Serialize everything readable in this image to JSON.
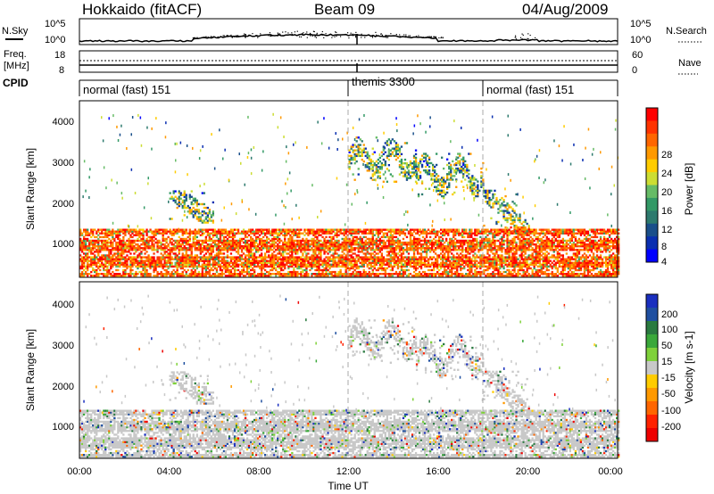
{
  "header": {
    "radar": "Hokkaido (fitACF)",
    "beam": "Beam 09",
    "date": "04/Aug/2009"
  },
  "noise_panel": {
    "left_label": "N.Sky",
    "right_label": "N.Search",
    "ticks": [
      "10^5",
      "10^0"
    ]
  },
  "freq_panel": {
    "left_label_1": "Freq.",
    "left_label_2": "[MHz]",
    "left_ticks": [
      "18",
      "8"
    ],
    "right_label": "Nave",
    "right_ticks": [
      "60",
      "0"
    ]
  },
  "cpid_panel": {
    "label": "CPID",
    "segments": [
      {
        "name": "normal (fast) 151",
        "start_hour": 0,
        "end_hour": 12
      },
      {
        "name": "themis 3300",
        "start_hour": 12,
        "end_hour": 18
      },
      {
        "name": "normal (fast) 151",
        "start_hour": 18,
        "end_hour": 24
      }
    ]
  },
  "power_panel": {
    "ylabel": "Slant Range [km]",
    "yticks": [
      "4000",
      "3000",
      "2000",
      "1000"
    ],
    "colorbar_label": "Power [dB]",
    "colorbar_ticks": [
      "28",
      "24",
      "20",
      "16",
      "12",
      "8",
      "4"
    ],
    "colors": [
      "#ff0000",
      "#ff3300",
      "#ff6600",
      "#ff9900",
      "#ffcc00",
      "#ccdd33",
      "#66bb66",
      "#339966",
      "#2d7a6e",
      "#1a4f8a",
      "#0a2fb0",
      "#0000ff"
    ]
  },
  "velocity_panel": {
    "ylabel": "Slant Range [km]",
    "yticks": [
      "4000",
      "3000",
      "2000",
      "1000"
    ],
    "colorbar_label": "Velocity [m s-1]",
    "colorbar_ticks": [
      "200",
      "100",
      "50",
      "15",
      "-15",
      "-50",
      "-100",
      "-200"
    ],
    "colors": [
      "#1a2fbf",
      "#1f4fa0",
      "#2a7a40",
      "#3aa83a",
      "#7fd13a",
      "#c8c8c8",
      "#ffcc00",
      "#ff9900",
      "#ff6600",
      "#ff2200",
      "#ee0000"
    ]
  },
  "x_axis": {
    "label": "Time UT",
    "ticks": [
      "00:00",
      "04:00",
      "08:00",
      "12:00",
      "16:00",
      "20:00",
      "00:00"
    ]
  },
  "chart_data": {
    "type": "heatmap",
    "title": "Hokkaido (fitACF)  Beam 09  04/Aug/2009",
    "xlabel": "Time UT",
    "ylabel": "Slant Range [km]",
    "x_range_hours": [
      0,
      24
    ],
    "y_range_km": [
      180,
      4500
    ],
    "panels": [
      "Power [dB]",
      "Velocity [m s-1]"
    ],
    "power_scale_db": [
      0,
      30
    ],
    "velocity_scale_ms": [
      -250,
      250
    ],
    "cpid_boundaries_hours": [
      12,
      18
    ],
    "frequency_mhz": 10,
    "echo_regions": [
      {
        "t_start": 0,
        "t_end": 24,
        "r_min": 200,
        "r_max": 1350,
        "note": "near-range persistent echoes, high power"
      },
      {
        "t_start": 4,
        "t_end": 6,
        "r_min": 1500,
        "r_max": 2300,
        "note": "diagonal echo streak"
      },
      {
        "t_start": 12,
        "t_end": 15,
        "r_min": 2500,
        "r_max": 3600,
        "note": "far-range patches"
      },
      {
        "t_start": 15,
        "t_end": 18,
        "r_min": 2100,
        "r_max": 3200,
        "note": "far-range patches"
      },
      {
        "t_start": 18,
        "t_end": 20,
        "r_min": 1200,
        "r_max": 2300,
        "note": "diagonal echo streak"
      }
    ]
  }
}
